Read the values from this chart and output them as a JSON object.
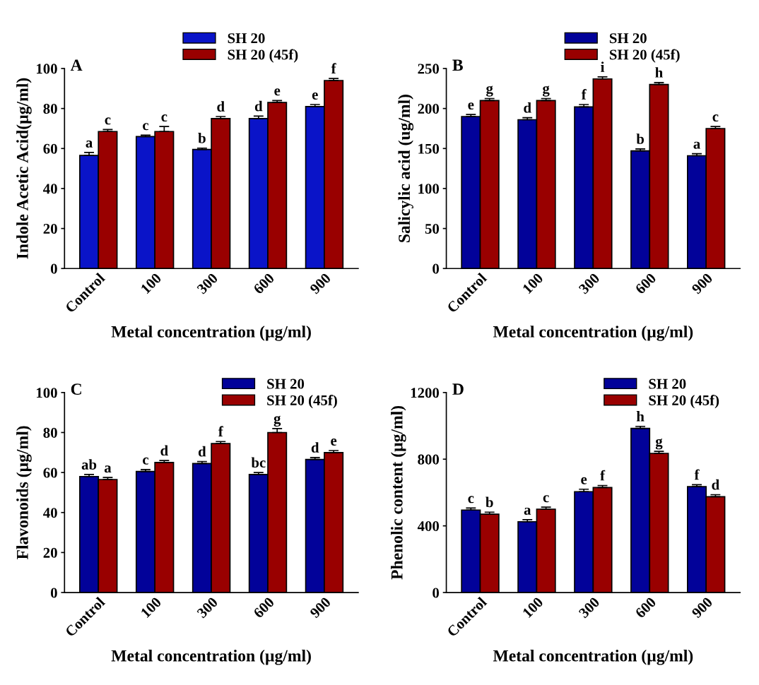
{
  "chart_data": [
    {
      "type": "bar",
      "title": "A",
      "xlabel": "Metal concentration (µg/ml)",
      "ylabel": "Indole Acetic Acid(µg/ml)",
      "categories": [
        "Control",
        "100",
        "300",
        "600",
        "900"
      ],
      "ylim": [
        0,
        100
      ],
      "yticks": [
        0,
        20,
        40,
        60,
        80,
        100
      ],
      "grid": false,
      "legend": "top",
      "series": [
        {
          "name": "SH 20",
          "color": "#0a14c8",
          "values": [
            56.5,
            66,
            59.5,
            75,
            81
          ],
          "errors": [
            1.5,
            0.7,
            0.7,
            1.2,
            1
          ],
          "value_labels": [
            "a",
            "c",
            "b",
            "d",
            "e"
          ]
        },
        {
          "name": "SH 20 (45f)",
          "color": "#990000",
          "values": [
            68.5,
            68.5,
            75,
            83,
            94
          ],
          "errors": [
            1,
            2.5,
            1,
            1,
            1
          ],
          "value_labels": [
            "c",
            "c",
            "d",
            "e",
            "f"
          ]
        }
      ]
    },
    {
      "type": "bar",
      "title": "B",
      "xlabel": "Metal concentration (µg/ml)",
      "ylabel": "Salicylic acid (ug/ml)",
      "categories": [
        "Control",
        "100",
        "300",
        "600",
        "900"
      ],
      "ylim": [
        0,
        250
      ],
      "yticks": [
        0,
        50,
        100,
        150,
        200,
        250
      ],
      "grid": false,
      "legend": "top",
      "series": [
        {
          "name": "SH 20",
          "color": "#020299",
          "values": [
            190,
            186,
            202,
            147,
            141
          ],
          "errors": [
            2.5,
            2.5,
            3,
            2.5,
            2.5
          ],
          "value_labels": [
            "e",
            "d",
            "f",
            "b",
            "a"
          ]
        },
        {
          "name": "SH 20 (45f)",
          "color": "#990000",
          "values": [
            210,
            210,
            237,
            230,
            175
          ],
          "errors": [
            2.5,
            2.5,
            2.5,
            2.5,
            2.5
          ],
          "value_labels": [
            "g",
            "g",
            "i",
            "h",
            "c"
          ]
        }
      ]
    },
    {
      "type": "bar",
      "title": "C",
      "xlabel": "Metal concentration (µg/ml)",
      "ylabel": "Flavonoids (µg/ml)",
      "categories": [
        "Control",
        "100",
        "300",
        "600",
        "900"
      ],
      "ylim": [
        0,
        100
      ],
      "yticks": [
        0,
        20,
        40,
        60,
        80,
        100
      ],
      "grid": false,
      "legend": "top right",
      "series": [
        {
          "name": "SH 20",
          "color": "#020299",
          "values": [
            58,
            60.5,
            64.5,
            59,
            66.5
          ],
          "errors": [
            1,
            1,
            1,
            1,
            1
          ],
          "value_labels": [
            "ab",
            "c",
            "d",
            "bc",
            "d"
          ]
        },
        {
          "name": "SH 20 (45f)",
          "color": "#990000",
          "values": [
            56.5,
            65,
            74.5,
            80,
            70
          ],
          "errors": [
            1,
            1,
            1,
            2,
            1
          ],
          "value_labels": [
            "a",
            "d",
            "f",
            "g",
            "e"
          ]
        }
      ]
    },
    {
      "type": "bar",
      "title": "D",
      "xlabel": "Metal concentration (µg/ml)",
      "ylabel": "Phenolic content (µg/ml)",
      "categories": [
        "Control",
        "100",
        "300",
        "600",
        "900"
      ],
      "ylim": [
        0,
        1200
      ],
      "yticks": [
        0,
        400,
        800,
        1200
      ],
      "grid": false,
      "legend": "top right",
      "series": [
        {
          "name": "SH 20",
          "color": "#020299",
          "values": [
            495,
            425,
            605,
            985,
            635
          ],
          "errors": [
            12,
            12,
            15,
            12,
            12
          ],
          "value_labels": [
            "c",
            "a",
            "e",
            "h",
            "f"
          ]
        },
        {
          "name": "SH 20 (45f)",
          "color": "#990000",
          "values": [
            470,
            500,
            630,
            835,
            575
          ],
          "errors": [
            12,
            12,
            12,
            12,
            12
          ],
          "value_labels": [
            "b",
            "c",
            "f",
            "g",
            "d"
          ]
        }
      ]
    }
  ]
}
